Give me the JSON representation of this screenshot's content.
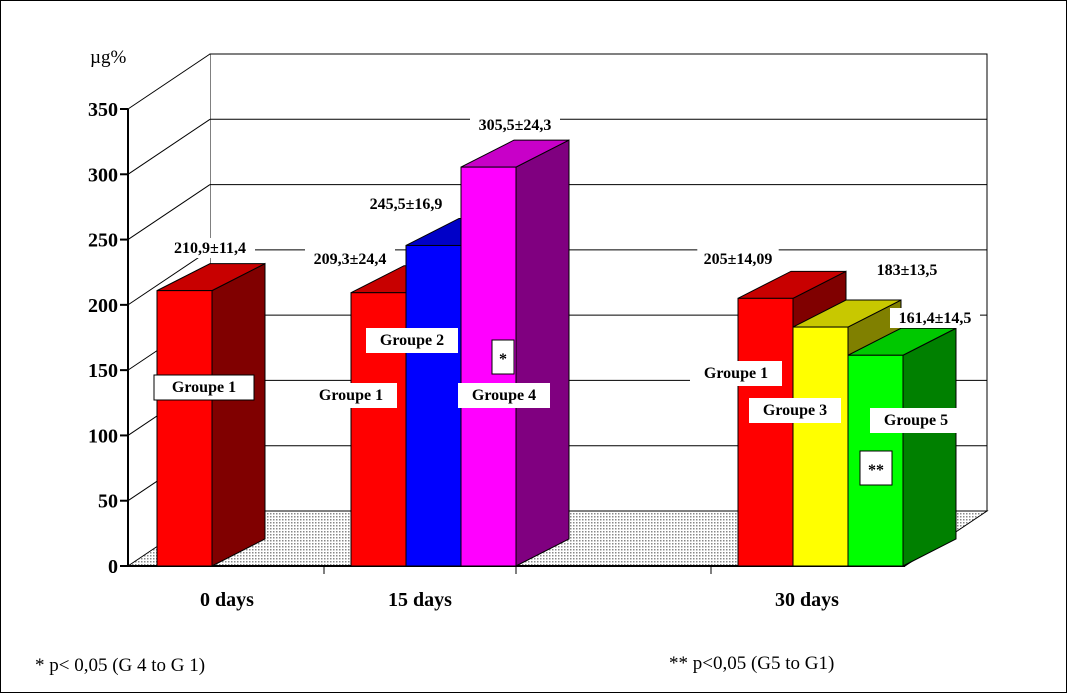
{
  "chart_data": {
    "type": "bar",
    "unit_label": "µg%",
    "ylim": [
      0,
      350
    ],
    "yticks": [
      "0",
      "50",
      "100",
      "150",
      "200",
      "250",
      "300",
      "350"
    ],
    "grid": true,
    "three_d": true,
    "categories": [
      "0 days",
      "15 days",
      "30 days"
    ],
    "bars": [
      {
        "category": "0 days",
        "group": "Groupe 1",
        "value": 210.9,
        "value_label": "210,9±11,4",
        "front": "#ff0000",
        "side": "#800000",
        "top": "#c80000"
      },
      {
        "category": "15 days",
        "group": "Groupe 1",
        "value": 209.3,
        "value_label": "209,3±24,4",
        "front": "#ff0000",
        "side": "#800000",
        "top": "#c80000"
      },
      {
        "category": "15 days",
        "group": "Groupe 2",
        "value": 245.5,
        "value_label": "245,5±16,9",
        "front": "#0000ff",
        "side": "#000080",
        "top": "#0000c8"
      },
      {
        "category": "15 days",
        "group": "Groupe 4",
        "value": 305.5,
        "value_label": "305,5±24,3",
        "front": "#ff00ff",
        "side": "#800080",
        "top": "#c800c8",
        "marker": "*"
      },
      {
        "category": "30 days",
        "group": "Groupe 1",
        "value": 205,
        "value_label": "205±14,09",
        "front": "#ff0000",
        "side": "#800000",
        "top": "#c80000"
      },
      {
        "category": "30 days",
        "group": "Groupe 3",
        "value": 183,
        "value_label": "183±13,5",
        "front": "#ffff00",
        "side": "#808000",
        "top": "#c8c800"
      },
      {
        "category": "30 days",
        "group": "Groupe 5",
        "value": 161.4,
        "value_label": "161,4±14,5",
        "front": "#00ff00",
        "side": "#008000",
        "top": "#00c800",
        "marker": "**"
      }
    ],
    "footnotes": [
      "* p< 0,05 (G 4 to G 1)",
      "** p<0,05 (G5 to G1)"
    ]
  }
}
